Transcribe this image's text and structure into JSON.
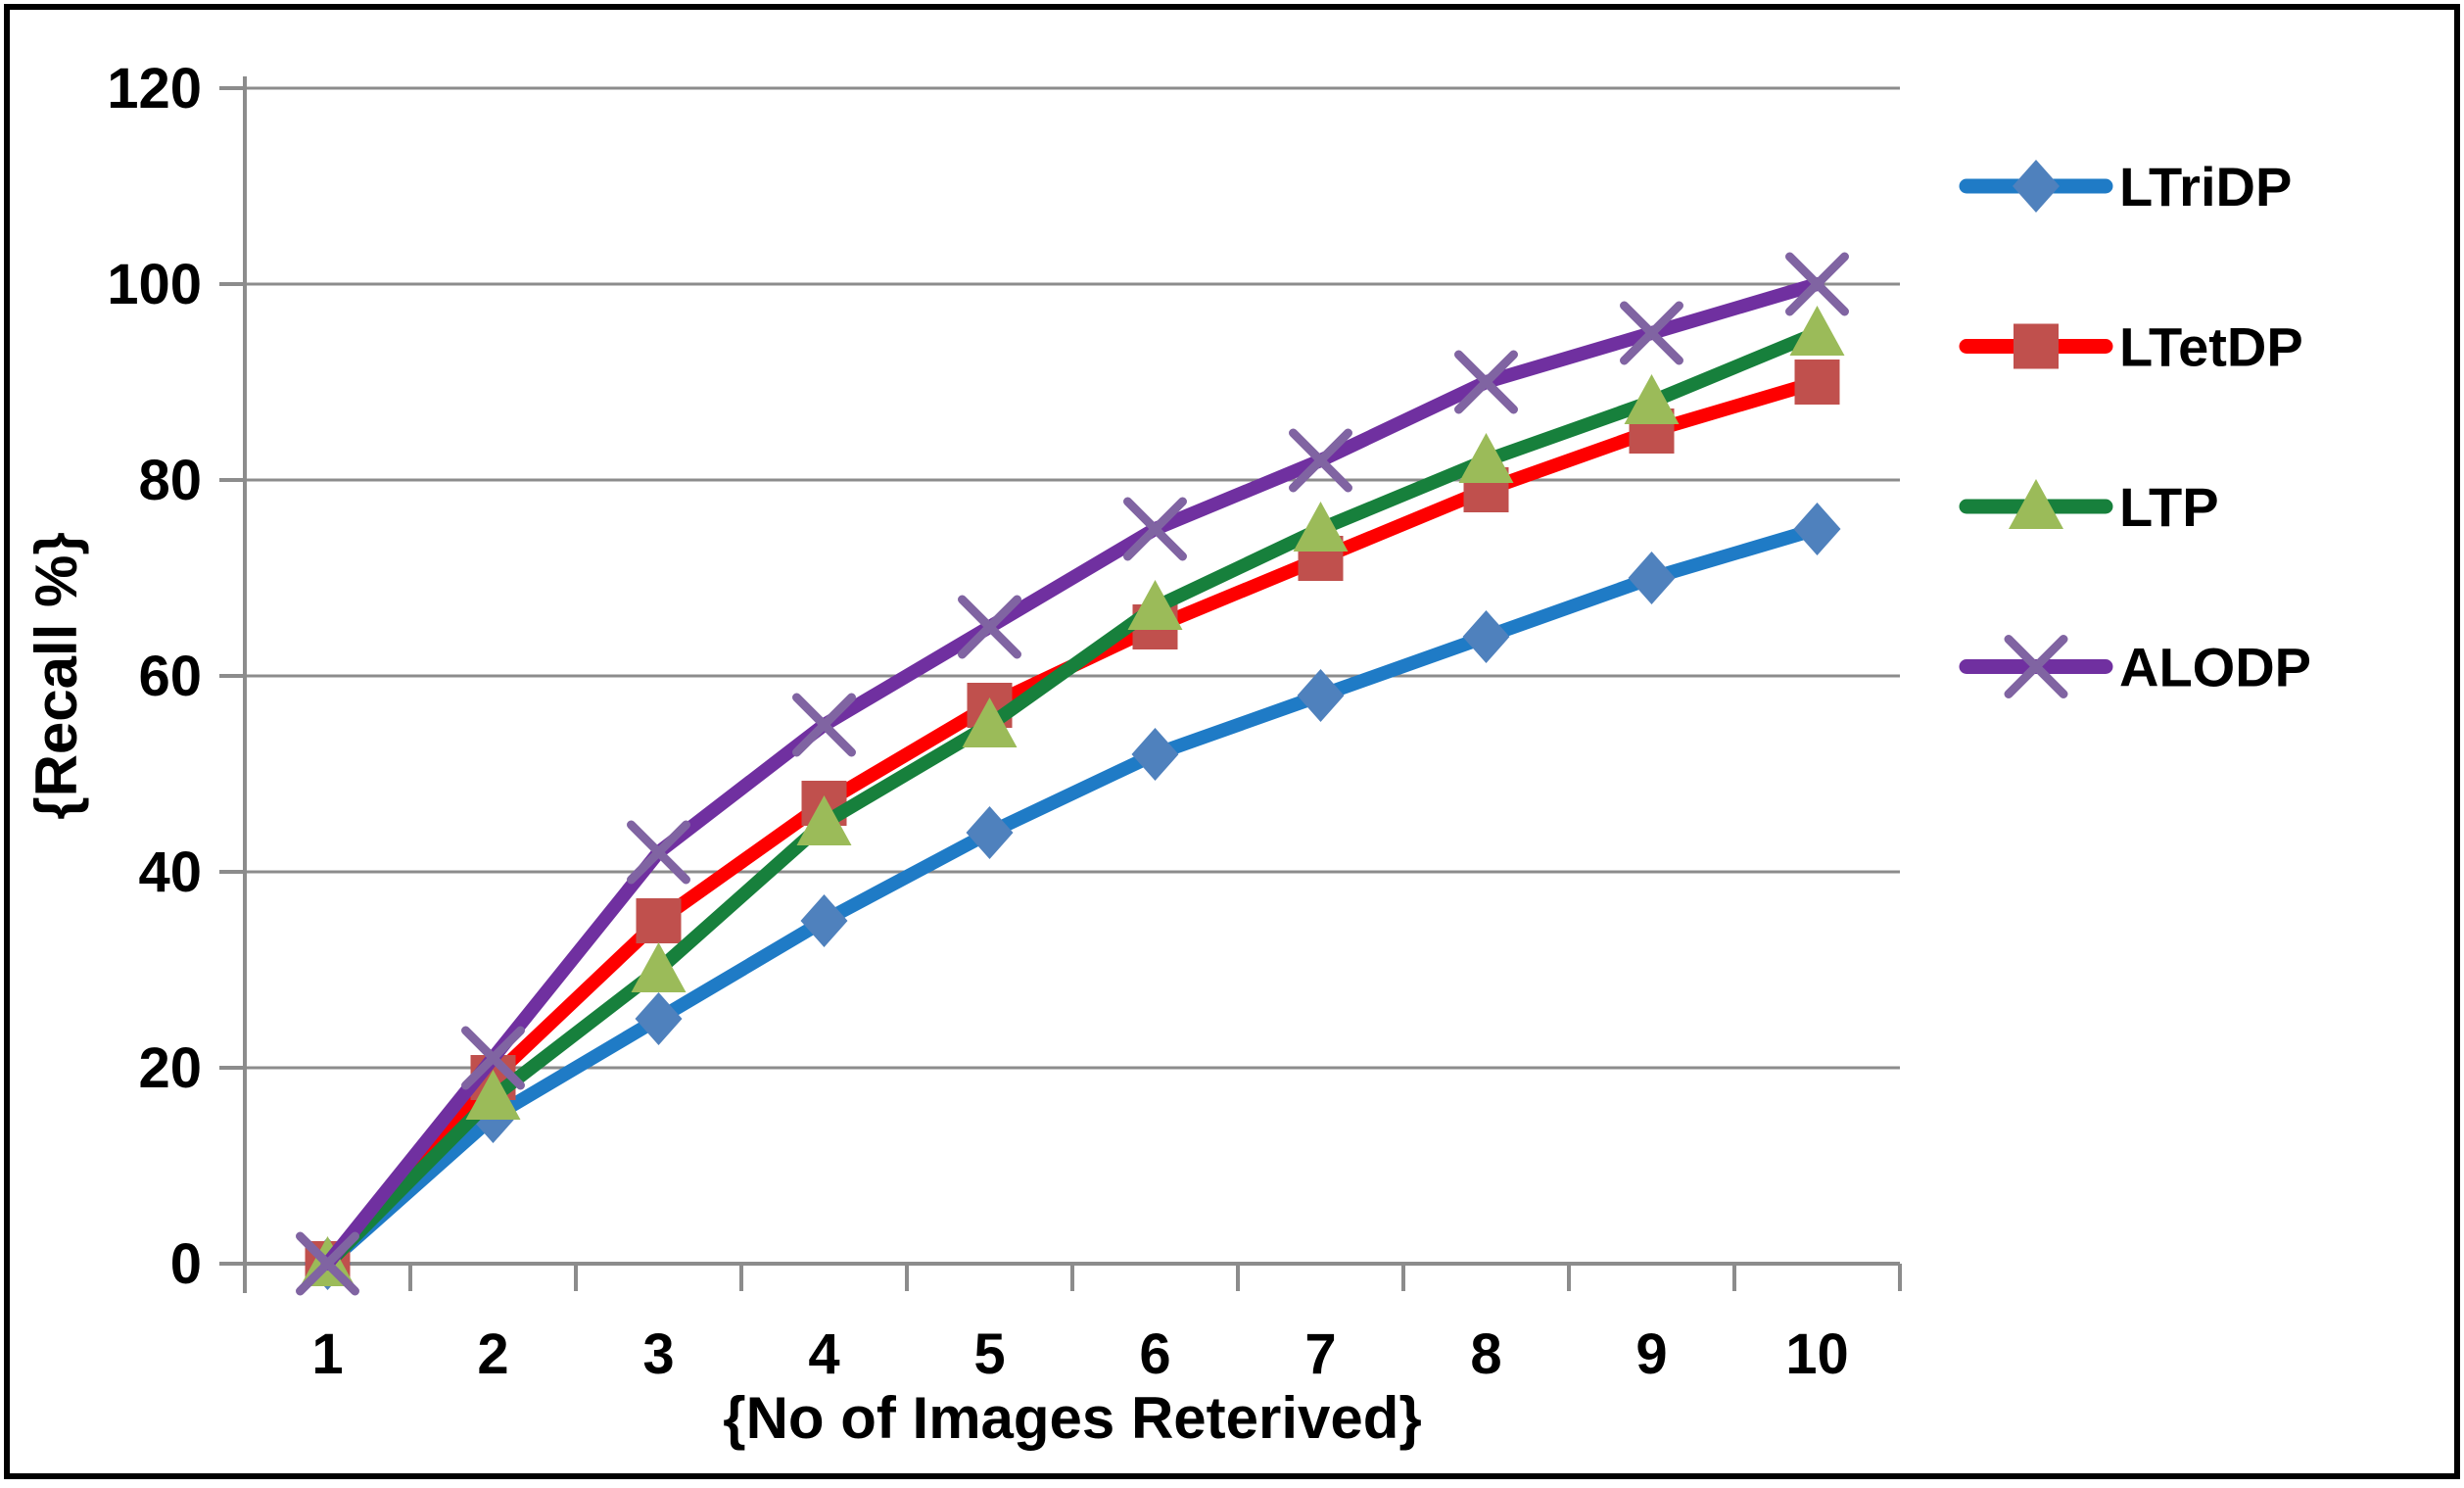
{
  "chart_data": {
    "type": "line",
    "title": "",
    "xlabel": "{No of Images Reterived}",
    "ylabel": "{Recall %}",
    "x": [
      1,
      2,
      3,
      4,
      5,
      6,
      7,
      8,
      9,
      10
    ],
    "xtick_labels": [
      "1",
      "2",
      "3",
      "4",
      "5",
      "6",
      "7",
      "8",
      "9",
      "10"
    ],
    "ylim": [
      0,
      120
    ],
    "ytick_step": 20,
    "ytick_labels": [
      "0",
      "20",
      "40",
      "60",
      "80",
      "100",
      "120"
    ],
    "grid": "horizontal-only",
    "legend_position": "right-outside",
    "series": [
      {
        "name": "LTriDP",
        "marker": "diamond",
        "line_color": "#1F7BC6",
        "marker_color": "#4F81BD",
        "values": [
          0,
          15,
          25,
          35,
          44,
          52,
          58,
          64,
          70,
          75
        ]
      },
      {
        "name": "LTetDP",
        "marker": "square",
        "line_color": "#FE0000",
        "marker_color": "#C0504D",
        "values": [
          0,
          19,
          35,
          47,
          57,
          65,
          72,
          79,
          85,
          90
        ]
      },
      {
        "name": "LTP",
        "marker": "triangle",
        "line_color": "#17803C",
        "marker_color": "#9BBB59",
        "values": [
          0,
          17,
          30,
          45,
          55,
          67,
          75,
          82,
          88,
          95
        ]
      },
      {
        "name": "ALODP",
        "marker": "x",
        "line_color": "#7030A0",
        "marker_color": "#8064A2",
        "values": [
          0,
          21,
          42,
          55,
          65,
          75,
          82,
          90,
          95,
          100
        ]
      }
    ],
    "colors": {
      "gridline": "#8C8C8C",
      "axis": "#8C8C8C",
      "text": "#000000",
      "background": "#FFFFFF",
      "figure_border": "#000000"
    }
  }
}
